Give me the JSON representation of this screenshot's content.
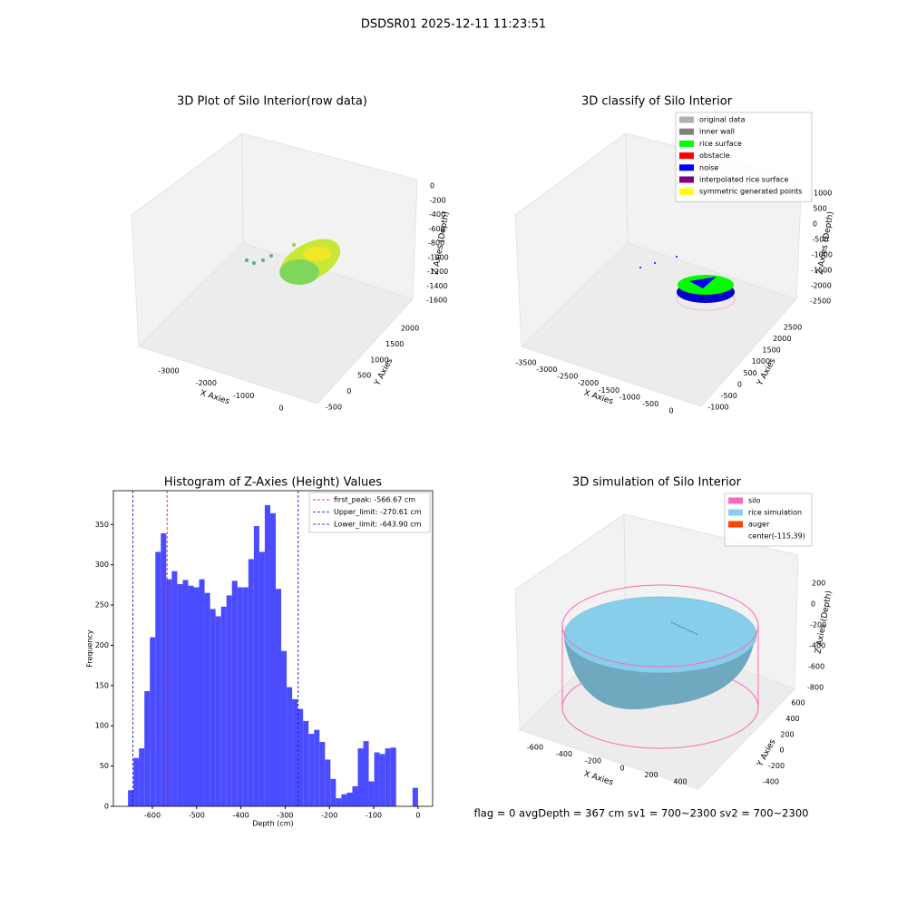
{
  "figure": {
    "title": "DSDSR01 2025-12-11 11:23:51",
    "footer": "flag = 0     avgDepth = 367 cm  sv1 = 700~2300  sv2 = 700~2300"
  },
  "chart_data": [
    {
      "type": "scatter3d",
      "title": "3D Plot of Silo Interior(row data)",
      "xlabel": "X Axies",
      "ylabel": "Y Axies",
      "zlabel": "Z Axies (Depth)",
      "xticks": [
        -3000,
        -2000,
        -1000,
        0
      ],
      "yticks": [
        -500,
        0,
        500,
        1000,
        1500,
        2000
      ],
      "zticks": [
        0,
        -200,
        -400,
        -600,
        -800,
        -1000,
        -1200,
        -1400,
        -1600
      ]
    },
    {
      "type": "scatter3d",
      "title": "3D classify of Silo Interior",
      "xlabel": "X Axies",
      "ylabel": "Y Axies",
      "zlabel": "Z Axies (Depth)",
      "xticks": [
        -3500,
        -3000,
        -2500,
        -2000,
        -1500,
        -1000,
        -500,
        0
      ],
      "yticks": [
        -1000,
        -500,
        0,
        500,
        1000,
        1500,
        2000,
        2500
      ],
      "zticks": [
        1000,
        500,
        0,
        -500,
        -1000,
        -1500,
        -2000,
        -2500
      ],
      "legend": [
        {
          "name": "original data",
          "color": "#b0b0b0"
        },
        {
          "name": "inner wall",
          "color": "#808080"
        },
        {
          "name": "rice surface",
          "color": "#00ff00"
        },
        {
          "name": "obstacle",
          "color": "#ff0000"
        },
        {
          "name": "noise",
          "color": "#0000ff"
        },
        {
          "name": "interpolated rice surface",
          "color": "#800080"
        },
        {
          "name": "symmetric generated points",
          "color": "#ffff00"
        }
      ]
    },
    {
      "type": "histogram",
      "title": "Histogram of Z-Axies (Height) Values",
      "xlabel": "Depth (cm)",
      "ylabel": "Frequency",
      "color": "#4b4bff",
      "bins": [
        -655.0,
        -642.6,
        -630.3,
        -617.9,
        -605.6,
        -593.2,
        -580.9,
        -568.5,
        -556.1,
        -543.8,
        -531.4,
        -519.1,
        -506.7,
        -494.4,
        -482.0,
        -469.6,
        -457.3,
        -444.9,
        -432.6,
        -420.2,
        -407.8,
        -395.5,
        -383.1,
        -370.8,
        -358.4,
        -346.1,
        -333.7,
        -321.3,
        -309.0,
        -296.6,
        -284.3,
        -271.9,
        -259.6,
        -247.2,
        -234.8,
        -222.5,
        -210.1,
        -197.8,
        -185.4,
        -173.1,
        -160.7,
        -148.3,
        -136.0,
        -123.6,
        -111.3,
        -98.9,
        -86.6,
        -74.2,
        -61.8,
        -49.5,
        -37.1,
        -24.8,
        -12.4,
        0.0
      ],
      "values": [
        20,
        60,
        72,
        143,
        210,
        316,
        339,
        282,
        292,
        276,
        281,
        274,
        272,
        282,
        265,
        245,
        236,
        248,
        262,
        280,
        272,
        272,
        307,
        348,
        316,
        374,
        364,
        270,
        193,
        148,
        133,
        121,
        106,
        90,
        95,
        80,
        58,
        34,
        10,
        15,
        17,
        25,
        72,
        81,
        31,
        67,
        65,
        72,
        73,
        0,
        0,
        0,
        23
      ],
      "xlim": [
        -688,
        33
      ],
      "ylim": [
        0,
        392
      ],
      "xticks": [
        -600,
        -500,
        -400,
        -300,
        -200,
        -100,
        0
      ],
      "yticks": [
        0,
        50,
        100,
        150,
        200,
        250,
        300,
        350
      ],
      "lines": [
        {
          "name": "first_peak: -566.67 cm",
          "value": -566.67,
          "color": "#ff0000"
        },
        {
          "name": "Upper_limit: -270.61 cm",
          "value": -270.61,
          "color": "#0000cc"
        },
        {
          "name": "Lower_limit: -643.90 cm",
          "value": -643.9,
          "color": "#0000cc"
        }
      ]
    },
    {
      "type": "surface3d",
      "title": "3D simulation of Silo Interior",
      "xlabel": "X Axies",
      "ylabel": "Y Axies",
      "zlabel": "Z Axies (Depth)",
      "xticks": [
        -600,
        -400,
        -200,
        0,
        200,
        400
      ],
      "yticks": [
        -400,
        -200,
        0,
        200,
        400,
        600
      ],
      "zticks": [
        200,
        0,
        -200,
        -400,
        -600,
        -800
      ],
      "legend": [
        {
          "name": "silo",
          "color": "#ff69b4"
        },
        {
          "name": "rice simulation",
          "color": "#87ceeb"
        },
        {
          "name": "auger",
          "color": "#ff4500"
        },
        {
          "name": "center(-115,39)",
          "color": null
        }
      ]
    }
  ]
}
